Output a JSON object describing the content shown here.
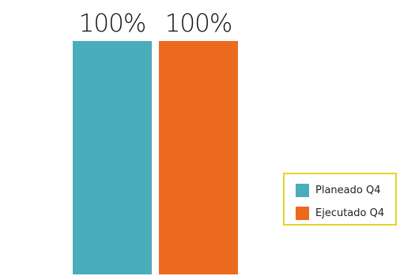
{
  "chart_data": {
    "type": "bar",
    "categories": [
      "Planeado Q4",
      "Ejecutado Q4"
    ],
    "values": [
      100,
      100
    ],
    "value_labels": [
      "100%",
      "100%"
    ],
    "colors": [
      "#4bacbc",
      "#ec6a1e"
    ],
    "ylim": [
      0,
      100
    ],
    "grid": false,
    "legend_placement": "right",
    "legend_border_color": "#e6d323",
    "title": "",
    "xlabel": "",
    "ylabel": ""
  },
  "legend": {
    "items": [
      {
        "label": "Planeado Q4",
        "color": "#4bacbc"
      },
      {
        "label": "Ejecutado Q4",
        "color": "#ec6a1e"
      }
    ]
  }
}
